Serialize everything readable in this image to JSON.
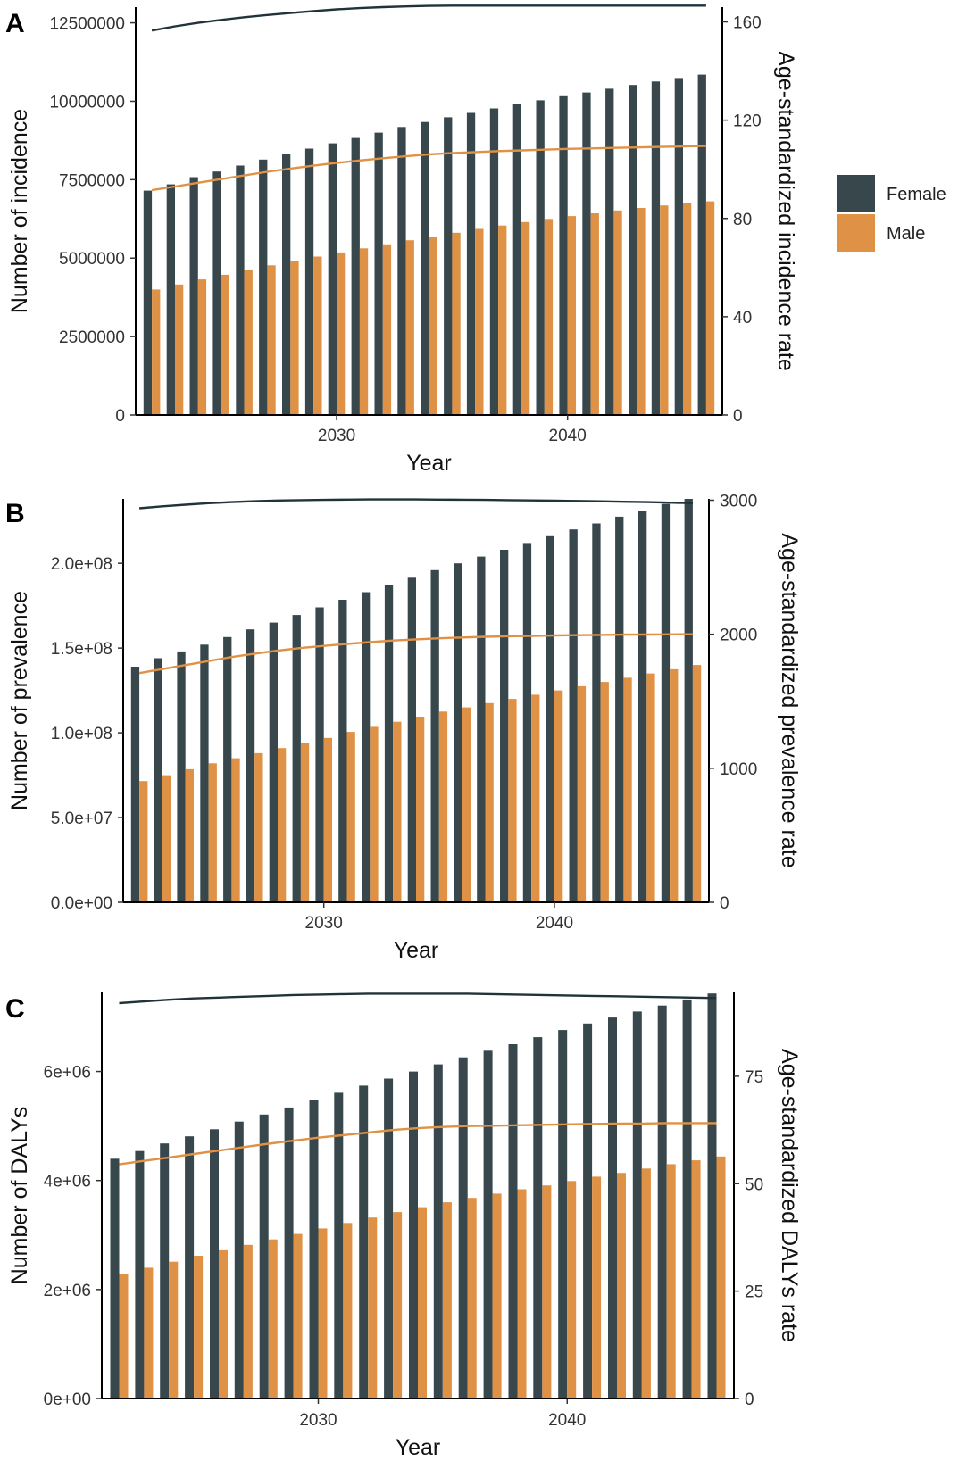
{
  "legend": {
    "entries": [
      {
        "name": "Female",
        "color": "#37474c"
      },
      {
        "name": "Male",
        "color": "#df9246"
      }
    ]
  },
  "chart_data": [
    {
      "type": "bar",
      "panel": "A",
      "xlabel": "Year",
      "ylabel": "Number of incidence",
      "y2label": "Age-standardized incidence rate",
      "x": [
        2022,
        2023,
        2024,
        2025,
        2026,
        2027,
        2028,
        2029,
        2030,
        2031,
        2032,
        2033,
        2034,
        2035,
        2036,
        2037,
        2038,
        2039,
        2040,
        2041,
        2042,
        2043,
        2044,
        2045,
        2046
      ],
      "xticks": [
        2030,
        2040
      ],
      "xtick_labels": [
        "2030",
        "2040"
      ],
      "ylim": [
        0,
        13000000
      ],
      "yticks": [
        0,
        2500000,
        5000000,
        7500000,
        10000000,
        12500000
      ],
      "ytick_labels": [
        "0",
        "2500000",
        "5000000",
        "7500000",
        "10000000",
        "12500000"
      ],
      "y2lim": [
        0,
        166
      ],
      "y2ticks": [
        0,
        40,
        80,
        120,
        160
      ],
      "y2tick_labels": [
        "0",
        "40",
        "80",
        "120",
        "160"
      ],
      "series": [
        {
          "name": "Female",
          "color": "#37474c",
          "values": [
            7150000,
            7350000,
            7580000,
            7760000,
            7950000,
            8140000,
            8320000,
            8490000,
            8660000,
            8830000,
            9000000,
            9180000,
            9340000,
            9490000,
            9630000,
            9770000,
            9900000,
            10030000,
            10160000,
            10280000,
            10400000,
            10520000,
            10630000,
            10740000,
            10850000
          ]
        },
        {
          "name": "Male",
          "color": "#df9246",
          "values": [
            4000000,
            4160000,
            4320000,
            4470000,
            4620000,
            4770000,
            4910000,
            5050000,
            5180000,
            5310000,
            5440000,
            5570000,
            5690000,
            5810000,
            5930000,
            6040000,
            6150000,
            6250000,
            6340000,
            6430000,
            6520000,
            6600000,
            6680000,
            6750000,
            6810000
          ]
        }
      ],
      "rate_series": [
        {
          "name": "Female",
          "color": "#1f3339",
          "values": [
            156.5,
            158.2,
            159.6,
            160.8,
            161.9,
            162.8,
            163.6,
            164.4,
            165.1,
            165.6,
            166.0,
            166.3,
            166.5,
            166.6,
            166.6,
            166.6,
            166.6,
            166.6,
            166.6,
            166.6,
            166.6,
            166.6,
            166.6,
            166.6,
            166.6
          ]
        },
        {
          "name": "Male",
          "color": "#df9246",
          "values": [
            91.5,
            93.0,
            94.5,
            96.0,
            97.5,
            99.0,
            100.3,
            101.5,
            102.6,
            103.6,
            104.5,
            105.3,
            106.1,
            106.6,
            107.0,
            107.4,
            107.7,
            108.0,
            108.3,
            108.5,
            108.7,
            108.9,
            109.1,
            109.3,
            109.5
          ]
        }
      ]
    },
    {
      "type": "bar",
      "panel": "B",
      "xlabel": "Year",
      "ylabel": "Number of prevalence",
      "y2label": "Age-standardized prevalence rate",
      "x": [
        2022,
        2023,
        2024,
        2025,
        2026,
        2027,
        2028,
        2029,
        2030,
        2031,
        2032,
        2033,
        2034,
        2035,
        2036,
        2037,
        2038,
        2039,
        2040,
        2041,
        2042,
        2043,
        2044,
        2045,
        2046
      ],
      "xticks": [
        2030,
        2040
      ],
      "xtick_labels": [
        "2030",
        "2040"
      ],
      "ylim": [
        0,
        238000000
      ],
      "yticks": [
        0,
        50000000,
        100000000,
        150000000,
        200000000
      ],
      "ytick_labels": [
        "0.0e+00",
        "5.0e+07",
        "1.0e+08",
        "1.5e+08",
        "2.0e+08"
      ],
      "y2lim": [
        0,
        3010
      ],
      "y2ticks": [
        0,
        1000,
        2000,
        3000
      ],
      "y2tick_labels": [
        "0",
        "1000",
        "2000",
        "3000"
      ],
      "series": [
        {
          "name": "Female",
          "color": "#37474c",
          "values": [
            139000000,
            144000000,
            148000000,
            152000000,
            156500000,
            161000000,
            165000000,
            169500000,
            174000000,
            178500000,
            183000000,
            187000000,
            191500000,
            196000000,
            200000000,
            204000000,
            208000000,
            212000000,
            216000000,
            220000000,
            223500000,
            227500000,
            231000000,
            235000000,
            238000000
          ]
        },
        {
          "name": "Male",
          "color": "#df9246",
          "values": [
            71500000,
            75000000,
            78500000,
            82000000,
            85000000,
            88000000,
            91000000,
            94000000,
            97000000,
            100500000,
            103500000,
            106500000,
            109500000,
            112500000,
            115000000,
            117500000,
            120000000,
            122500000,
            125000000,
            127500000,
            130000000,
            132500000,
            135000000,
            137500000,
            140000000
          ]
        }
      ],
      "rate_series": [
        {
          "name": "Female",
          "color": "#1f3339",
          "values": [
            2940,
            2955,
            2967,
            2978,
            2986,
            2993,
            2998,
            3001,
            3003,
            3005,
            3006,
            3006,
            3006,
            3005,
            3004,
            3003,
            3001,
            2999,
            2997,
            2995,
            2992,
            2989,
            2986,
            2982,
            2978
          ]
        },
        {
          "name": "Male",
          "color": "#df9246",
          "values": [
            1710,
            1740,
            1770,
            1800,
            1830,
            1855,
            1878,
            1897,
            1913,
            1928,
            1941,
            1953,
            1962,
            1970,
            1976,
            1981,
            1985,
            1988,
            1991,
            1993,
            1995,
            1997,
            1998,
            1999,
            2000
          ]
        }
      ]
    },
    {
      "type": "bar",
      "panel": "C",
      "xlabel": "Year",
      "ylabel": "Number of DALYs",
      "y2label": "Age-standardized DALYs rate",
      "x": [
        2022,
        2023,
        2024,
        2025,
        2026,
        2027,
        2028,
        2029,
        2030,
        2031,
        2032,
        2033,
        2034,
        2035,
        2036,
        2037,
        2038,
        2039,
        2040,
        2041,
        2042,
        2043,
        2044,
        2045,
        2046
      ],
      "xticks": [
        2030,
        2040
      ],
      "xtick_labels": [
        "2030",
        "2040"
      ],
      "ylim": [
        0,
        7450000
      ],
      "yticks": [
        0,
        2000000,
        4000000,
        6000000
      ],
      "ytick_labels": [
        "0e+00",
        "2e+06",
        "4e+06",
        "6e+06"
      ],
      "y2lim": [
        0,
        94.5
      ],
      "y2ticks": [
        0,
        25,
        50,
        75
      ],
      "y2tick_labels": [
        "0",
        "25",
        "50",
        "75"
      ],
      "series": [
        {
          "name": "Female",
          "color": "#37474c",
          "values": [
            4400000,
            4540000,
            4680000,
            4810000,
            4940000,
            5080000,
            5210000,
            5340000,
            5480000,
            5610000,
            5740000,
            5870000,
            6000000,
            6130000,
            6260000,
            6380000,
            6500000,
            6630000,
            6760000,
            6880000,
            6990000,
            7100000,
            7210000,
            7320000,
            7430000
          ]
        },
        {
          "name": "Male",
          "color": "#df9246",
          "values": [
            2290000,
            2400000,
            2510000,
            2620000,
            2720000,
            2820000,
            2920000,
            3020000,
            3120000,
            3220000,
            3320000,
            3420000,
            3510000,
            3600000,
            3680000,
            3760000,
            3840000,
            3910000,
            3990000,
            4070000,
            4140000,
            4220000,
            4300000,
            4370000,
            4440000
          ]
        }
      ],
      "rate_series": [
        {
          "name": "Female",
          "color": "#1f3339",
          "values": [
            92.0,
            92.4,
            92.8,
            93.1,
            93.3,
            93.5,
            93.7,
            93.9,
            94.0,
            94.1,
            94.2,
            94.2,
            94.2,
            94.2,
            94.2,
            94.1,
            94.0,
            93.9,
            93.8,
            93.7,
            93.6,
            93.5,
            93.4,
            93.3,
            93.2
          ]
        },
        {
          "name": "Male",
          "color": "#df9246",
          "values": [
            54.5,
            55.3,
            56.1,
            56.9,
            57.7,
            58.5,
            59.3,
            60.0,
            60.7,
            61.3,
            61.9,
            62.5,
            62.9,
            63.2,
            63.4,
            63.5,
            63.6,
            63.7,
            63.8,
            63.9,
            64.0,
            64.0,
            64.1,
            64.1,
            64.1
          ]
        }
      ]
    }
  ]
}
